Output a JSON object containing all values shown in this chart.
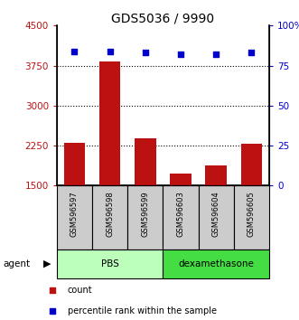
{
  "title": "GDS5036 / 9990",
  "samples": [
    "GSM596597",
    "GSM596598",
    "GSM596599",
    "GSM596603",
    "GSM596604",
    "GSM596605"
  ],
  "counts": [
    2300,
    3820,
    2380,
    1720,
    1870,
    2280
  ],
  "percentiles": [
    84,
    84,
    83,
    82,
    82,
    83
  ],
  "ylim_left": [
    1500,
    4500
  ],
  "ylim_right": [
    0,
    100
  ],
  "yticks_left": [
    1500,
    2250,
    3000,
    3750,
    4500
  ],
  "yticks_right": [
    0,
    25,
    50,
    75,
    100
  ],
  "yticklabels_right": [
    "0",
    "25",
    "50",
    "75",
    "100%"
  ],
  "bar_color": "#bb1111",
  "dot_color": "#0000cc",
  "groups": [
    {
      "label": "PBS",
      "start": 0,
      "end": 3,
      "color": "#bbffbb"
    },
    {
      "label": "dexamethasone",
      "start": 3,
      "end": 6,
      "color": "#44dd44"
    }
  ],
  "agent_label": "agent",
  "legend_items": [
    {
      "label": "count",
      "color": "#bb1111"
    },
    {
      "label": "percentile rank within the sample",
      "color": "#0000cc"
    }
  ],
  "background_color": "#ffffff",
  "tick_label_area_bg": "#cccccc",
  "title_fontsize": 10,
  "tick_fontsize": 7.5,
  "bar_width": 0.6
}
